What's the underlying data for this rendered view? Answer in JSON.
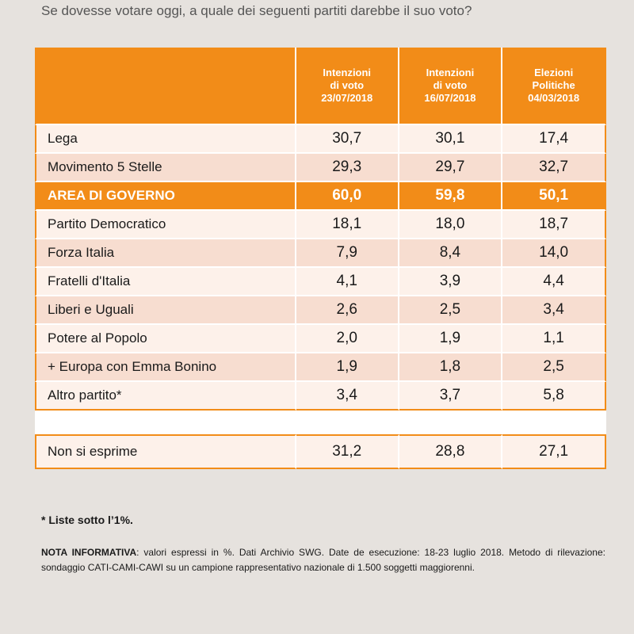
{
  "question": "Se dovesse votare oggi, a quale dei seguenti partiti darebbe il suo voto?",
  "chart_data": {
    "type": "table",
    "columns": [
      {
        "line1": "Intenzioni",
        "line2": "di voto",
        "line3": "23/07/2018"
      },
      {
        "line1": "Intenzioni",
        "line2": "di voto",
        "line3": "16/07/2018"
      },
      {
        "line1": "Elezioni",
        "line2": "Politiche",
        "line3": "04/03/2018"
      }
    ],
    "rows": [
      {
        "label": "Lega",
        "values": [
          "30,7",
          "30,1",
          "17,4"
        ],
        "style": "odd"
      },
      {
        "label": "Movimento 5 Stelle",
        "values": [
          "29,3",
          "29,7",
          "32,7"
        ],
        "style": "even"
      },
      {
        "label": "AREA DI GOVERNO",
        "values": [
          "60,0",
          "59,8",
          "50,1"
        ],
        "style": "gov"
      },
      {
        "label": "Partito Democratico",
        "values": [
          "18,1",
          "18,0",
          "18,7"
        ],
        "style": "odd"
      },
      {
        "label": "Forza Italia",
        "values": [
          "7,9",
          "8,4",
          "14,0"
        ],
        "style": "even"
      },
      {
        "label": "Fratelli d'Italia",
        "values": [
          "4,1",
          "3,9",
          "4,4"
        ],
        "style": "odd"
      },
      {
        "label": "Liberi e Uguali",
        "values": [
          "2,6",
          "2,5",
          "3,4"
        ],
        "style": "even"
      },
      {
        "label": "Potere al Popolo",
        "values": [
          "2,0",
          "1,9",
          "1,1"
        ],
        "style": "odd"
      },
      {
        "label": "+ Europa con Emma Bonino",
        "values": [
          "1,9",
          "1,8",
          "2,5"
        ],
        "style": "even"
      },
      {
        "label": "Altro partito*",
        "values": [
          "3,4",
          "3,7",
          "5,8"
        ],
        "style": "odd"
      }
    ],
    "non_si_esprime": {
      "label": "Non si esprime",
      "values": [
        "31,2",
        "28,8",
        "27,1"
      ]
    }
  },
  "footnote": "* Liste sotto l’1%.",
  "nota": {
    "label": "NOTA INFORMATIVA",
    "text": ": valori espressi in %. Dati Archivio SWG. Date de esecuzione: 18-23 luglio 2018. Metodo di rilevazione: sondaggio CATI-CAMI-CAWI su un campione rappresentativo nazionale di 1.500 soggetti maggiorenni."
  },
  "colors": {
    "accent": "#f28c18",
    "row_light": "#fdf1ea",
    "row_dark": "#f7ddd0",
    "background": "#e6e2de"
  }
}
